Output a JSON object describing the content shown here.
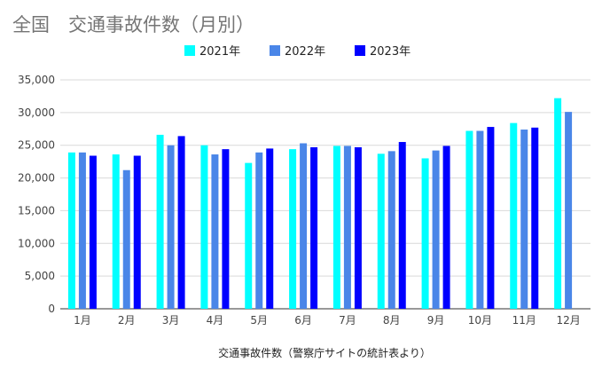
{
  "chart_data": {
    "type": "bar",
    "title": "全国　交通事故件数（月別）",
    "xlabel": "交通事故件数（警察庁サイトの統計表より）",
    "ylabel": "",
    "categories": [
      "1月",
      "2月",
      "3月",
      "4月",
      "5月",
      "6月",
      "7月",
      "8月",
      "9月",
      "10月",
      "11月",
      "12月"
    ],
    "ylim": [
      0,
      35000
    ],
    "yticks": [
      "0",
      "5,000",
      "10,000",
      "15,000",
      "20,000",
      "25,000",
      "30,000",
      "35,000"
    ],
    "ytick_values": [
      0,
      5000,
      10000,
      15000,
      20000,
      25000,
      30000,
      35000
    ],
    "grid": true,
    "legend_position": "top-center",
    "series": [
      {
        "name": "2021年",
        "color": "#00ffff",
        "values": [
          23900,
          23600,
          26600,
          25000,
          22300,
          24400,
          24900,
          23700,
          23000,
          27200,
          28400,
          32200
        ]
      },
      {
        "name": "2022年",
        "color": "#4a86e8",
        "values": [
          23900,
          21200,
          25000,
          23600,
          23900,
          25300,
          24900,
          24100,
          24200,
          27200,
          27400,
          30100
        ]
      },
      {
        "name": "2023年",
        "color": "#0000ff",
        "values": [
          23400,
          23400,
          26400,
          24400,
          24500,
          24700,
          24700,
          25500,
          24900,
          27800,
          27700,
          null
        ]
      }
    ]
  }
}
